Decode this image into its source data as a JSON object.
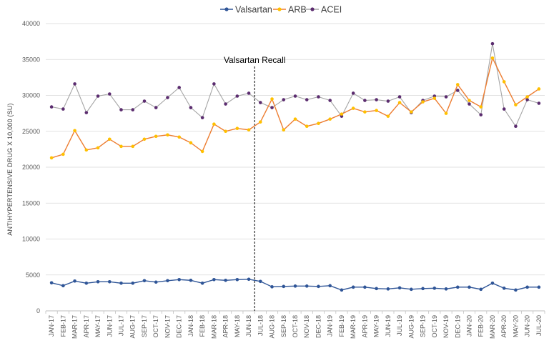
{
  "chart_data": {
    "type": "line",
    "title": "",
    "xlabel": "",
    "ylabel": "ANTIHYPERTENSIVE DRUG X 10,000 (SU)",
    "ylim": [
      0,
      40000
    ],
    "yticks": [
      "0",
      "5000",
      "10000",
      "15000",
      "20000",
      "25000",
      "30000",
      "35000",
      "40000"
    ],
    "grid": "horizontal",
    "legend_position": "top",
    "categories": [
      "JAN-17",
      "FEB-17",
      "MAR-17",
      "APR-17",
      "MAY-17",
      "JUN-17",
      "JUL-17",
      "AUG-17",
      "SEP-17",
      "OCT-17",
      "NOV-17",
      "DEC-17",
      "JAN-18",
      "FEB-18",
      "MAR-18",
      "APR-18",
      "MAY-18",
      "JUN-18",
      "JUL-18",
      "AUG-18",
      "SEP-18",
      "OCT-18",
      "NOV-18",
      "DEC-18",
      "JAN-19",
      "FEB-19",
      "MAR-19",
      "APR-19",
      "MAY-19",
      "JUN-19",
      "JUL-19",
      "AUG-19",
      "SEP-19",
      "OCT-19",
      "NOV-19",
      "DEC-19",
      "JAN-20",
      "FEB-20",
      "MAR-20",
      "APR-20",
      "MAY-20",
      "JUN-20",
      "JUL-20"
    ],
    "series": [
      {
        "name": "Valsartan",
        "line_color": "#2F5597",
        "marker_color": "#2F5597",
        "values": [
          3900,
          3500,
          4150,
          3850,
          4050,
          4050,
          3850,
          3850,
          4200,
          4000,
          4200,
          4350,
          4250,
          3850,
          4350,
          4250,
          4350,
          4400,
          4100,
          3350,
          3400,
          3450,
          3450,
          3400,
          3500,
          2900,
          3300,
          3300,
          3100,
          3050,
          3200,
          3000,
          3100,
          3150,
          3050,
          3300,
          3300,
          3000,
          3850,
          3150,
          2900,
          3300,
          3300
        ]
      },
      {
        "name": "ARB",
        "line_color": "#ED7D31",
        "marker_color": "#FFC000",
        "values": [
          21300,
          21800,
          25100,
          22400,
          22700,
          23900,
          22900,
          22900,
          23900,
          24300,
          24500,
          24200,
          23400,
          22200,
          26000,
          25000,
          25400,
          25200,
          26300,
          29500,
          25200,
          26700,
          25700,
          26100,
          26700,
          27400,
          28200,
          27700,
          27900,
          27100,
          29000,
          27700,
          29100,
          29600,
          27500,
          31500,
          29300,
          28400,
          35200,
          31900,
          28700,
          29800,
          30900
        ]
      },
      {
        "name": "ACEI",
        "line_color": "#A5A5A5",
        "marker_color": "#5B2C6F",
        "values": [
          28400,
          28100,
          31600,
          27600,
          29900,
          30200,
          28000,
          28000,
          29200,
          28300,
          29700,
          31100,
          28300,
          26900,
          31600,
          28800,
          29900,
          30300,
          29000,
          28300,
          29400,
          29900,
          29400,
          29800,
          29300,
          27100,
          30300,
          29300,
          29400,
          29200,
          29800,
          27600,
          29300,
          29900,
          29800,
          30700,
          28800,
          27300,
          37200,
          28100,
          25700,
          29400,
          28900
        ]
      }
    ],
    "annotations": [
      {
        "text": "Valsartan Recall",
        "category": "JUL-18",
        "style": "dashed-vertical-line"
      }
    ]
  }
}
